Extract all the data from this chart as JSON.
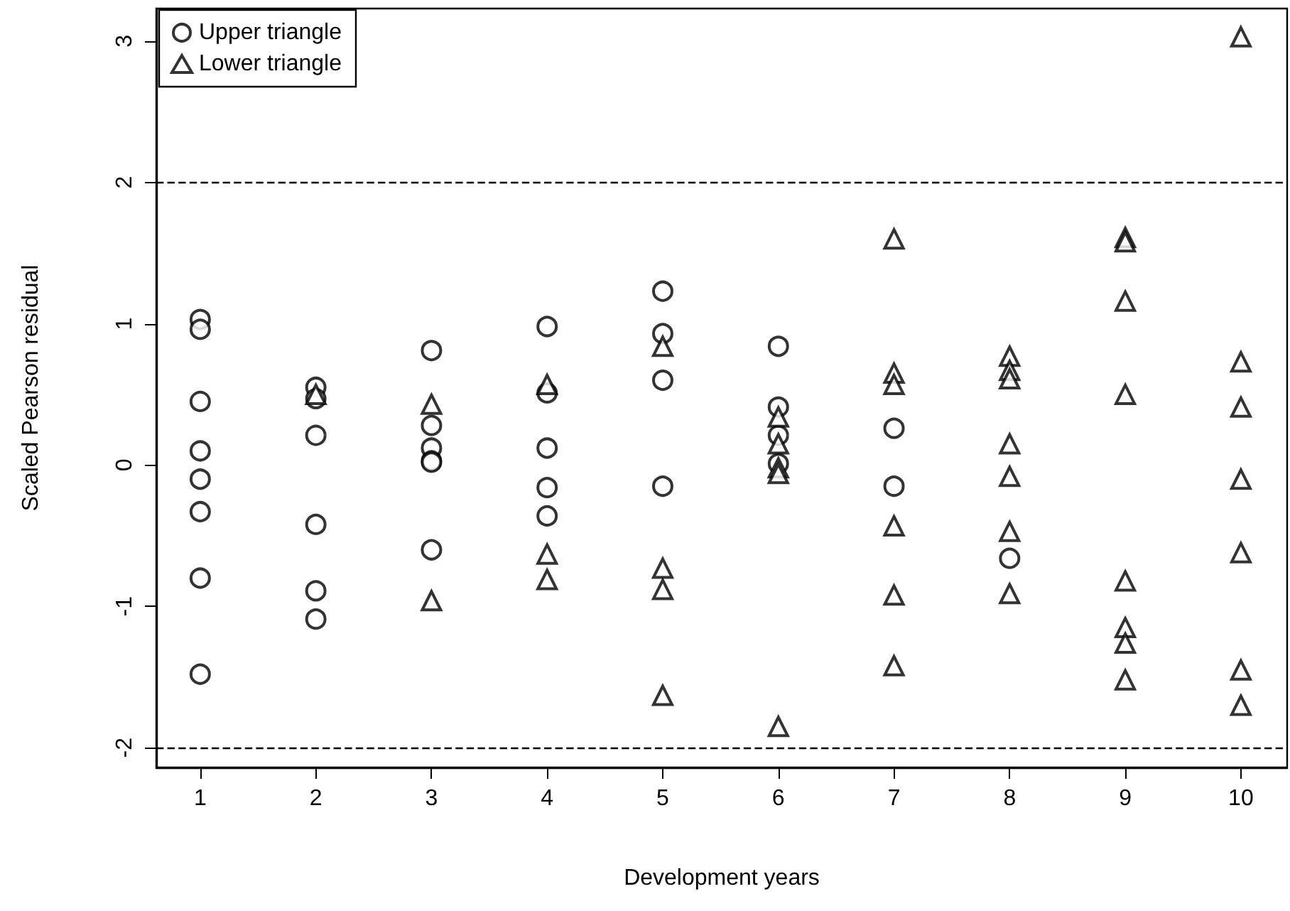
{
  "chart_data": {
    "type": "scatter",
    "xlabel": "Development years",
    "ylabel": "Scaled Pearson residual",
    "xlim": [
      0.62,
      10.4
    ],
    "xticks": [
      1,
      2,
      3,
      4,
      5,
      6,
      7,
      8,
      9,
      10
    ],
    "ylim": [
      -2.14,
      3.23
    ],
    "yticks": [
      -2,
      -1,
      0,
      1,
      2,
      3
    ],
    "grid": false,
    "legend": "top left",
    "ref_lines": [
      {
        "axis": "y",
        "value": 2,
        "line_style": "dashed",
        "color": "#000000"
      },
      {
        "axis": "y",
        "value": -2,
        "line_style": "dashed",
        "color": "#000000"
      }
    ],
    "series": [
      {
        "name": "Upper triangle",
        "color": "#000000",
        "marker": "circle",
        "x": [
          1,
          1,
          1,
          1,
          1,
          1,
          1,
          1,
          2,
          2,
          2,
          2,
          2,
          2,
          3,
          3,
          3,
          3,
          3,
          3,
          4,
          4,
          4,
          4,
          4,
          5,
          5,
          5,
          5,
          6,
          6,
          6,
          6,
          7,
          7,
          8
        ],
        "values": [
          1.03,
          0.96,
          0.45,
          0.1,
          -0.1,
          -0.33,
          -0.8,
          -1.48,
          0.55,
          0.47,
          0.21,
          -0.42,
          -0.89,
          -1.09,
          0.81,
          0.28,
          0.12,
          0.03,
          0.02,
          -0.6,
          0.98,
          0.51,
          0.12,
          -0.16,
          -0.36,
          1.23,
          0.93,
          0.6,
          -0.15,
          0.84,
          0.41,
          0.21,
          0.01,
          0.26,
          -0.15,
          -0.66
        ]
      },
      {
        "name": "Lower triangle",
        "color": "#000000",
        "marker": "triangle",
        "x": [
          2,
          3,
          3,
          4,
          4,
          4,
          5,
          5,
          5,
          5,
          6,
          6,
          6,
          6,
          6,
          7,
          7,
          7,
          7,
          7,
          7,
          8,
          8,
          8,
          8,
          8,
          8,
          8,
          9,
          9,
          9,
          9,
          9,
          9,
          9,
          9,
          10,
          10,
          10,
          10,
          10,
          10,
          10
        ],
        "values": [
          0.5,
          0.43,
          -0.96,
          0.57,
          -0.63,
          -0.81,
          0.84,
          -0.73,
          -0.88,
          -1.63,
          0.34,
          0.15,
          -0.02,
          -0.06,
          -1.85,
          1.6,
          0.65,
          0.57,
          -0.43,
          -0.92,
          -1.42,
          0.77,
          0.67,
          0.61,
          0.15,
          -0.08,
          -0.47,
          -0.91,
          1.61,
          1.58,
          1.16,
          0.5,
          -0.82,
          -1.15,
          -1.26,
          -1.52,
          3.03,
          0.73,
          0.41,
          -0.1,
          -0.62,
          -1.45,
          -1.7
        ]
      }
    ]
  }
}
